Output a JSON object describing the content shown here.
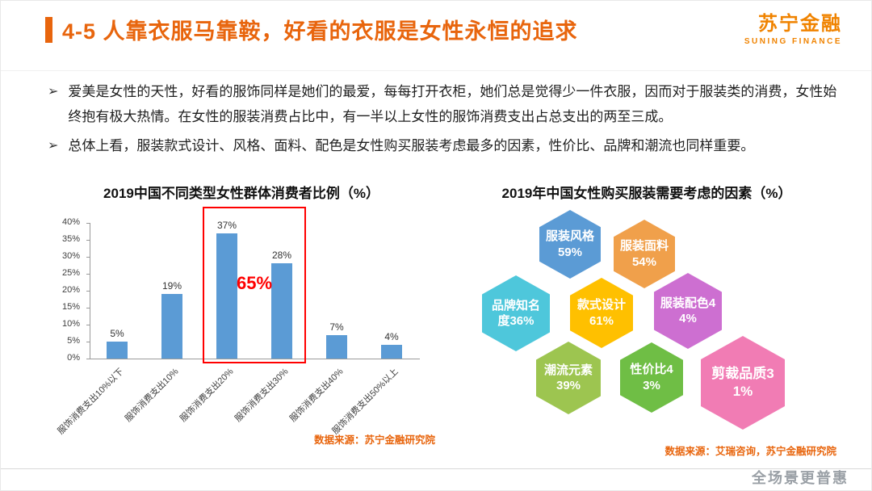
{
  "colors": {
    "accent": "#E8650D",
    "brand": "#F08300",
    "bar": "#5B9BD5",
    "highlight": "#FF0000"
  },
  "header": {
    "title": "4-5 人靠衣服马靠鞍，好看的衣服是女性永恒的追求",
    "logo": "苏宁金融",
    "logo_sub": "SUNING FINANCE"
  },
  "bullets": {
    "marker": "➢",
    "items": [
      "爱美是女性的天性，好看的服饰同样是她们的最爱，每每打开衣柜，她们总是觉得少一件衣服，因而对于服装类的消费，女性始终抱有极大热情。在女性的服装消费占比中，有一半以上女性的服饰消费支出占总支出的两至三成。",
      "总体上看，服装款式设计、风格、面料、配色是女性购买服装考虑最多的因素，性价比、品牌和潮流也同样重要。"
    ]
  },
  "chart_data": [
    {
      "type": "bar",
      "title": "2019中国不同类型女性群体消费者比例（%）",
      "categories": [
        "服饰消费支出10%以下",
        "服饰消费支出10%",
        "服饰消费支出20%",
        "服饰消费支出30%",
        "服饰消费支出40%",
        "服饰消费支出50%以上"
      ],
      "values": [
        5,
        19,
        37,
        28,
        7,
        4
      ],
      "value_labels": [
        "5%",
        "19%",
        "37%",
        "28%",
        "7%",
        "4%"
      ],
      "ylabel": "",
      "xlabel": "",
      "ylim": [
        0,
        40
      ],
      "ytick_step": 5,
      "grid": false,
      "bar_color": "#5B9BD5",
      "highlight": {
        "from_index": 2,
        "to_index": 3,
        "label": "65%",
        "color": "#FF0000"
      },
      "source": "数据来源：苏宁金融研究院"
    },
    {
      "type": "pie",
      "layout": "hexagon-cluster",
      "title": "2019年中国女性购买服装需要考虑的因素（%）",
      "items": [
        {
          "label": "服装风格",
          "value": 59,
          "display": "服装风格59%",
          "color": "#5B9BD5"
        },
        {
          "label": "服装面料",
          "value": 54,
          "display": "服装面料54%",
          "color": "#F0A04B"
        },
        {
          "label": "品牌知名度",
          "value": 36,
          "display": "品牌知名度36%",
          "color": "#4EC7DB"
        },
        {
          "label": "款式设计",
          "value": 61,
          "display": "款式设计61%",
          "color": "#FFC000"
        },
        {
          "label": "服装配色",
          "value": 44,
          "display": "服装配色44%",
          "color": "#CD6FD1"
        },
        {
          "label": "潮流元素",
          "value": 39,
          "display": "潮流元素39%",
          "color": "#9DC550"
        },
        {
          "label": "性价比",
          "value": 43,
          "display": "性价比43%",
          "color": "#6FBE45"
        },
        {
          "label": "剪裁品质",
          "value": 31,
          "display": "剪裁品质31%",
          "color": "#F17CB4"
        }
      ],
      "source": "数据来源：艾瑞咨询，苏宁金融研究院"
    }
  ],
  "footer": {
    "watermark": "全场景更普惠"
  }
}
